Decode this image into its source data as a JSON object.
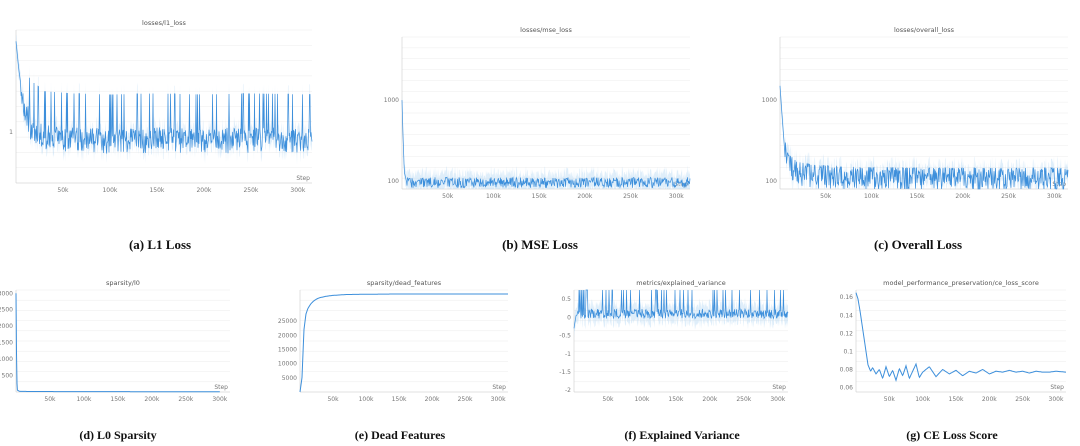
{
  "captions": {
    "a": "(a) L1 Loss",
    "b": "(b) MSE Loss",
    "c": "(c) Overall Loss",
    "d": "(d) L0 Sparsity",
    "e": "(e) Dead Features",
    "f": "(f) Explained Variance",
    "g": "(g) CE Loss Score"
  },
  "colors": {
    "line": "#3d8fdb",
    "band": "#b9d9f5",
    "grid": "#ececec",
    "axis": "#cccccc"
  },
  "chart_data": [
    {
      "id": "a",
      "type": "line",
      "title": "losses/l1_loss",
      "xlabel": "Step",
      "ylabel": "",
      "xlim": [
        0,
        315000
      ],
      "ylim": [
        0.55,
        1.9
      ],
      "yscale": "linear",
      "grid": true,
      "x_ticks": [
        50000,
        100000,
        150000,
        200000,
        250000,
        300000
      ],
      "x_tick_labels": [
        "50k",
        "100k",
        "150k",
        "200k",
        "250k",
        "300k"
      ],
      "y_ticks": [
        1
      ],
      "y_tick_labels": [
        "1"
      ],
      "series": [
        {
          "x": [
            0,
            3000,
            8000,
            15000,
            30000,
            60000,
            100000,
            150000,
            200000,
            250000,
            315000
          ],
          "y": [
            1.8,
            1.55,
            1.25,
            1.05,
            0.95,
            0.93,
            0.92,
            0.93,
            0.92,
            0.93,
            0.92
          ]
        }
      ]
    },
    {
      "id": "b",
      "type": "line",
      "title": "losses/mse_loss",
      "xlabel": "Step",
      "ylabel": "",
      "xlim": [
        0,
        315000
      ],
      "ylim": [
        80,
        6000
      ],
      "yscale": "log",
      "grid": true,
      "x_ticks": [
        50000,
        100000,
        150000,
        200000,
        250000,
        300000
      ],
      "x_tick_labels": [
        "50k",
        "100k",
        "150k",
        "200k",
        "250k",
        "300k"
      ],
      "y_ticks": [
        100,
        1000
      ],
      "y_tick_labels": [
        "100",
        "1000"
      ],
      "series": [
        {
          "x": [
            0,
            1000,
            2500,
            5000,
            10000,
            50000,
            100000,
            150000,
            200000,
            250000,
            315000
          ],
          "y": [
            1000,
            400,
            130,
            98,
            97,
            97,
            97,
            97,
            97,
            97,
            97
          ]
        }
      ]
    },
    {
      "id": "c",
      "type": "line",
      "title": "losses/overall_loss",
      "xlabel": "Step",
      "ylabel": "",
      "xlim": [
        0,
        315000
      ],
      "ylim": [
        80,
        6000
      ],
      "yscale": "log",
      "grid": true,
      "x_ticks": [
        50000,
        100000,
        150000,
        200000,
        250000,
        300000
      ],
      "x_tick_labels": [
        "50k",
        "100k",
        "150k",
        "200k",
        "250k",
        "300k"
      ],
      "y_ticks": [
        100,
        1000
      ],
      "y_tick_labels": [
        "100",
        "1000"
      ],
      "series": [
        {
          "x": [
            0,
            2000,
            5000,
            10000,
            20000,
            40000,
            60000,
            100000,
            150000,
            200000,
            250000,
            315000
          ],
          "y": [
            1500,
            700,
            250,
            160,
            130,
            120,
            115,
            112,
            110,
            110,
            110,
            110
          ]
        }
      ]
    },
    {
      "id": "d",
      "type": "line",
      "title": "sparsity/l0",
      "xlabel": "Step",
      "ylabel": "",
      "xlim": [
        0,
        315000
      ],
      "ylim": [
        0,
        3100
      ],
      "yscale": "linear",
      "grid": true,
      "x_ticks": [
        50000,
        100000,
        150000,
        200000,
        250000,
        300000
      ],
      "x_tick_labels": [
        "50k",
        "100k",
        "150k",
        "200k",
        "250k",
        "300k"
      ],
      "y_ticks": [
        500,
        1000,
        1500,
        2000,
        2500,
        3000
      ],
      "y_tick_labels": [
        "500",
        "1000",
        "1500",
        "2000",
        "2500",
        "3000"
      ],
      "series": [
        {
          "x": [
            0,
            1000,
            2000,
            5000,
            20000,
            100000,
            200000,
            300000
          ],
          "y": [
            3000,
            400,
            60,
            20,
            15,
            12,
            10,
            10
          ]
        }
      ]
    },
    {
      "id": "e",
      "type": "line",
      "title": "sparsity/dead_features",
      "xlabel": "Step",
      "ylabel": "",
      "xlim": [
        0,
        315000
      ],
      "ylim": [
        0,
        36000
      ],
      "yscale": "linear",
      "grid": true,
      "x_ticks": [
        50000,
        100000,
        150000,
        200000,
        250000,
        300000
      ],
      "x_tick_labels": [
        "50k",
        "100k",
        "150k",
        "200k",
        "250k",
        "300k"
      ],
      "y_ticks": [
        5000,
        10000,
        15000,
        20000,
        25000
      ],
      "y_tick_labels": [
        "5000",
        "10000",
        "15000",
        "20000",
        "25000"
      ],
      "series": [
        {
          "x": [
            0,
            3000,
            6000,
            9000,
            12000,
            16000,
            20000,
            25000,
            30000,
            40000,
            50000,
            70000,
            100000,
            150000,
            200000,
            315000
          ],
          "y": [
            0,
            5000,
            22000,
            27500,
            29500,
            31000,
            32000,
            32800,
            33300,
            33800,
            34100,
            34400,
            34500,
            34600,
            34600,
            34600
          ]
        }
      ]
    },
    {
      "id": "f",
      "type": "line",
      "title": "metrics/explained_variance",
      "xlabel": "Step",
      "ylabel": "",
      "xlim": [
        0,
        315000
      ],
      "ylim": [
        -2.05,
        0.75
      ],
      "yscale": "linear",
      "grid": true,
      "x_ticks": [
        50000,
        100000,
        150000,
        200000,
        250000,
        300000
      ],
      "x_tick_labels": [
        "50k",
        "100k",
        "150k",
        "200k",
        "250k",
        "300k"
      ],
      "y_ticks": [
        0.5,
        0,
        -0.5,
        -1,
        -1.5,
        -2
      ],
      "y_tick_labels": [
        "0.5",
        "0",
        "-0.5",
        "-1",
        "-1.5",
        "-2"
      ],
      "series": [
        {
          "x": [
            0,
            3000,
            8000,
            20000,
            50000,
            100000,
            150000,
            200000,
            250000,
            315000
          ],
          "y": [
            -0.3,
            0.05,
            0.1,
            0.1,
            0.1,
            0.1,
            0.1,
            0.1,
            0.1,
            0.1
          ]
        }
      ]
    },
    {
      "id": "g",
      "type": "line",
      "title": "model_performance_preservation/ce_loss_score",
      "xlabel": "Step",
      "ylabel": "",
      "xlim": [
        0,
        315000
      ],
      "ylim": [
        0.055,
        0.168
      ],
      "yscale": "linear",
      "grid": true,
      "x_ticks": [
        50000,
        100000,
        150000,
        200000,
        250000,
        300000
      ],
      "x_tick_labels": [
        "50k",
        "100k",
        "150k",
        "200k",
        "250k",
        "300k"
      ],
      "y_ticks": [
        0.06,
        0.08,
        0.1,
        0.12,
        0.14,
        0.16
      ],
      "y_tick_labels": [
        "0.06",
        "0.08",
        "0.1",
        "0.12",
        "0.14",
        "0.16"
      ],
      "series": [
        {
          "x": [
            0,
            3000,
            6000,
            10000,
            14000,
            18000,
            22000,
            25000,
            30000,
            35000,
            40000,
            45000,
            50000,
            55000,
            60000,
            65000,
            70000,
            75000,
            80000,
            85000,
            90000,
            95000,
            100000,
            110000,
            120000,
            130000,
            140000,
            150000,
            160000,
            170000,
            180000,
            190000,
            200000,
            210000,
            220000,
            230000,
            240000,
            250000,
            260000,
            270000,
            280000,
            290000,
            300000,
            315000
          ],
          "y": [
            0.165,
            0.158,
            0.145,
            0.125,
            0.105,
            0.085,
            0.078,
            0.082,
            0.075,
            0.08,
            0.07,
            0.083,
            0.072,
            0.079,
            0.068,
            0.081,
            0.073,
            0.084,
            0.07,
            0.078,
            0.086,
            0.071,
            0.077,
            0.083,
            0.072,
            0.08,
            0.075,
            0.079,
            0.073,
            0.078,
            0.076,
            0.08,
            0.075,
            0.078,
            0.077,
            0.079,
            0.077,
            0.078,
            0.076,
            0.078,
            0.077,
            0.077,
            0.078,
            0.077
          ]
        }
      ]
    }
  ]
}
